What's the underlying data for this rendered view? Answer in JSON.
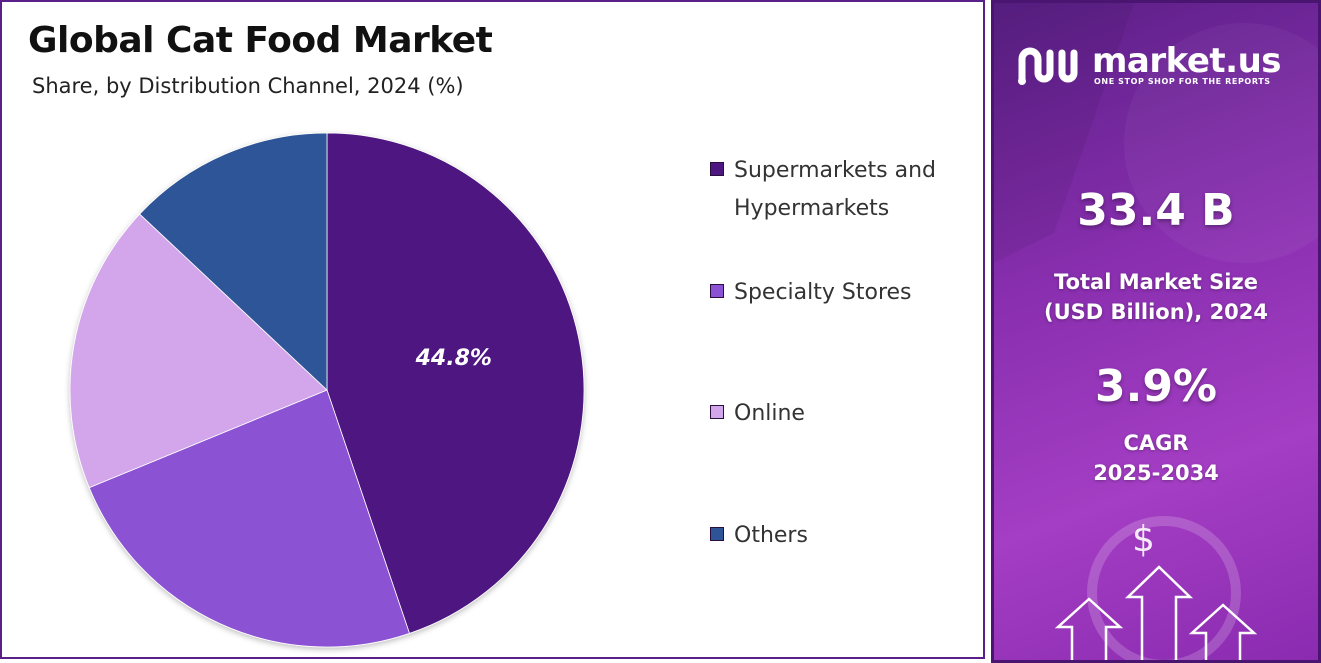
{
  "header": {
    "title": "Global Cat Food Market",
    "subtitle": "Share, by Distribution Channel, 2024 (%)"
  },
  "chart_data": {
    "type": "pie",
    "title": "Global Cat Food Market",
    "subtitle": "Share, by Distribution Channel, 2024 (%)",
    "categories": [
      "Supermarkets and Hypermarkets",
      "Specialty Stores",
      "Online",
      "Others"
    ],
    "values": [
      44.8,
      24.0,
      18.2,
      13.0
    ],
    "data_labels": [
      "44.8%",
      "",
      "",
      ""
    ],
    "colors": [
      "#4d1680",
      "#8b52d4",
      "#d3a5ea",
      "#2e5497"
    ],
    "legend_position": "right",
    "start": "12 o'clock",
    "direction": "clockwise"
  },
  "legend": {
    "items": [
      {
        "label": "Supermarkets and Hypermarkets",
        "color": "#4d1680"
      },
      {
        "label": "Specialty Stores",
        "color": "#8b52d4"
      },
      {
        "label": "Online",
        "color": "#d3a5ea"
      },
      {
        "label": "Others",
        "color": "#2e5497"
      }
    ]
  },
  "sidebar": {
    "brand_name": "market.us",
    "brand_tagline": "ONE STOP SHOP FOR THE REPORTS",
    "market_size_value": "33.4 B",
    "market_size_label": "Total Market Size (USD Billion), 2024",
    "cagr_value": "3.9%",
    "cagr_label": "CAGR",
    "cagr_period": "2025-2034",
    "dollar_symbol": "$"
  }
}
